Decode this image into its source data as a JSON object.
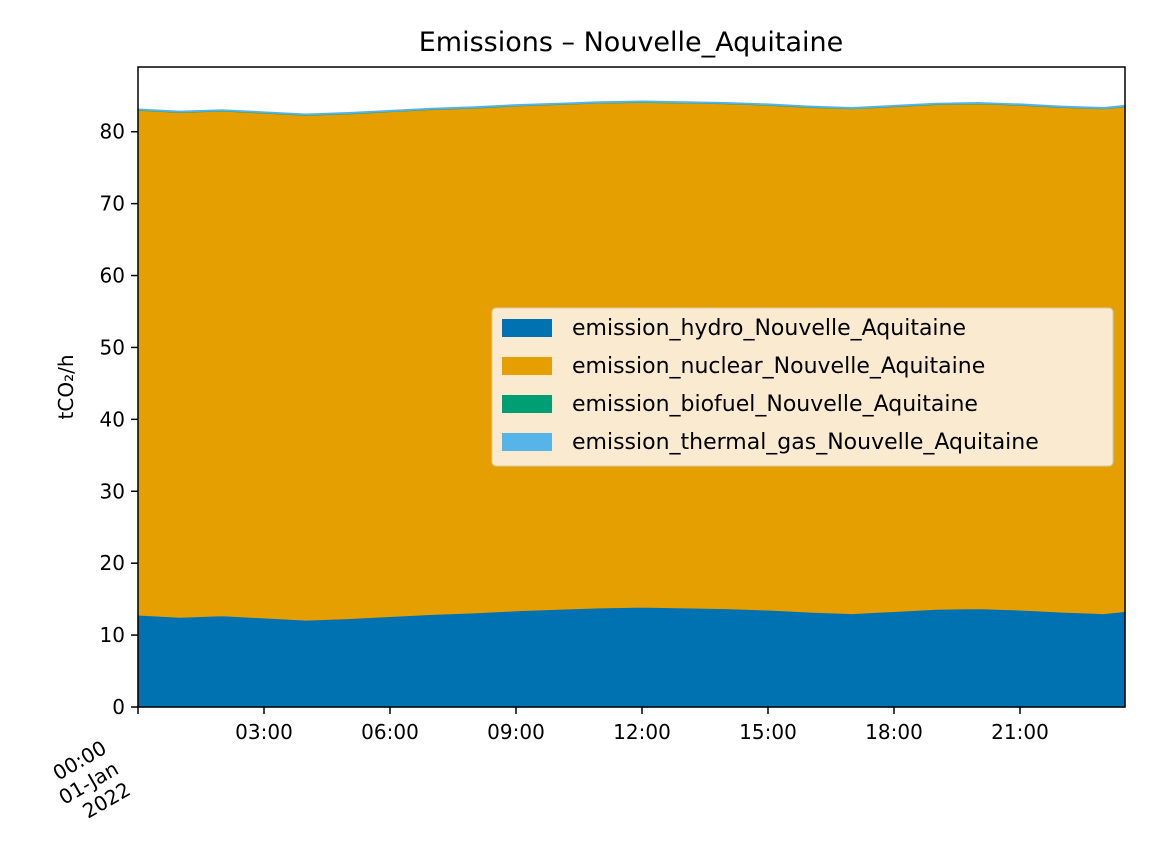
{
  "chart_data": {
    "type": "area",
    "stacked": true,
    "title": "Emissions – Nouvelle_Aquitaine",
    "xlabel": "",
    "ylabel": "tCO₂/h",
    "ylim": [
      0,
      89
    ],
    "xlim": [
      "2022-01-01 00:00",
      "2022-01-01 23:30"
    ],
    "grid": false,
    "legend_position": "center-right",
    "x_ticks": [
      {
        "value": "2022-01-01 00:00",
        "label": [
          "00:00",
          "01-Jan",
          "2022"
        ]
      },
      {
        "value": "2022-01-01 03:00",
        "label": [
          "03:00"
        ]
      },
      {
        "value": "2022-01-01 06:00",
        "label": [
          "06:00"
        ]
      },
      {
        "value": "2022-01-01 09:00",
        "label": [
          "09:00"
        ]
      },
      {
        "value": "2022-01-01 12:00",
        "label": [
          "12:00"
        ]
      },
      {
        "value": "2022-01-01 15:00",
        "label": [
          "15:00"
        ]
      },
      {
        "value": "2022-01-01 18:00",
        "label": [
          "18:00"
        ]
      },
      {
        "value": "2022-01-01 21:00",
        "label": [
          "21:00"
        ]
      }
    ],
    "y_ticks": [
      0,
      10,
      20,
      30,
      40,
      50,
      60,
      70,
      80
    ],
    "x": [
      "2022-01-01 00:00",
      "2022-01-01 01:00",
      "2022-01-01 02:00",
      "2022-01-01 03:00",
      "2022-01-01 04:00",
      "2022-01-01 05:00",
      "2022-01-01 06:00",
      "2022-01-01 07:00",
      "2022-01-01 08:00",
      "2022-01-01 09:00",
      "2022-01-01 10:00",
      "2022-01-01 11:00",
      "2022-01-01 12:00",
      "2022-01-01 13:00",
      "2022-01-01 14:00",
      "2022-01-01 15:00",
      "2022-01-01 16:00",
      "2022-01-01 17:00",
      "2022-01-01 18:00",
      "2022-01-01 19:00",
      "2022-01-01 20:00",
      "2022-01-01 21:00",
      "2022-01-01 22:00",
      "2022-01-01 23:00",
      "2022-01-01 23:30"
    ],
    "series": [
      {
        "name": "emission_hydro_Nouvelle_Aquitaine",
        "color": "#0072b2",
        "values": [
          12.8,
          12.5,
          12.7,
          12.4,
          12.1,
          12.3,
          12.6,
          12.9,
          13.1,
          13.4,
          13.6,
          13.8,
          13.9,
          13.8,
          13.7,
          13.5,
          13.2,
          13.0,
          13.3,
          13.6,
          13.7,
          13.5,
          13.2,
          13.0,
          13.3
        ]
      },
      {
        "name": "emission_nuclear_Nouvelle_Aquitaine",
        "color": "#e69f00",
        "values": [
          70.2,
          70.2,
          70.2,
          70.2,
          70.2,
          70.2,
          70.2,
          70.2,
          70.2,
          70.2,
          70.2,
          70.2,
          70.2,
          70.2,
          70.2,
          70.2,
          70.2,
          70.2,
          70.2,
          70.2,
          70.2,
          70.2,
          70.2,
          70.2,
          70.2
        ]
      },
      {
        "name": "emission_biofuel_Nouvelle_Aquitaine",
        "color": "#009e73",
        "values": [
          0.05,
          0.05,
          0.05,
          0.05,
          0.05,
          0.05,
          0.05,
          0.05,
          0.05,
          0.05,
          0.05,
          0.05,
          0.05,
          0.05,
          0.05,
          0.05,
          0.05,
          0.05,
          0.05,
          0.05,
          0.05,
          0.05,
          0.05,
          0.05,
          0.05
        ]
      },
      {
        "name": "emission_thermal_gas_Nouvelle_Aquitaine",
        "color": "#56b4e9",
        "values": [
          0.1,
          0.1,
          0.1,
          0.1,
          0.1,
          0.1,
          0.1,
          0.1,
          0.1,
          0.1,
          0.1,
          0.1,
          0.1,
          0.1,
          0.1,
          0.1,
          0.1,
          0.1,
          0.1,
          0.1,
          0.1,
          0.1,
          0.1,
          0.1,
          0.1
        ]
      }
    ]
  }
}
